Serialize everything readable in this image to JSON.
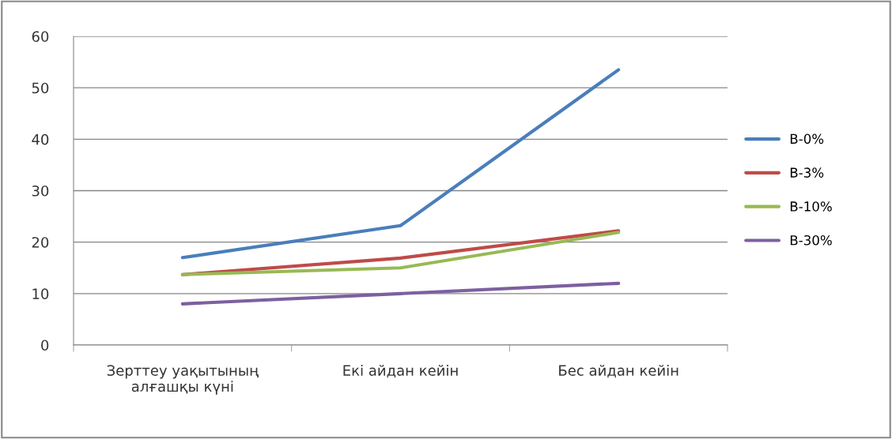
{
  "chart_data": {
    "type": "line",
    "categories": [
      "Зерттеу уақытының\nалғашқы күні",
      "Екі айдан кейін",
      "Бес айдан кейін"
    ],
    "series": [
      {
        "name": "B-0%",
        "color": "#4a7ebb",
        "values": [
          17,
          23.2,
          53.5
        ]
      },
      {
        "name": "B-3%",
        "color": "#be4b48",
        "values": [
          13.7,
          16.9,
          22.2
        ]
      },
      {
        "name": "B-10%",
        "color": "#98b954",
        "values": [
          13.7,
          15,
          21.9
        ]
      },
      {
        "name": "B-30%",
        "color": "#7d60a0",
        "values": [
          8,
          10,
          12
        ]
      }
    ],
    "ylim": [
      0,
      60
    ],
    "yticks": [
      0,
      10,
      20,
      30,
      40,
      50,
      60
    ],
    "grid": "y",
    "legend": "right",
    "marker": "none",
    "line_style": "solid"
  }
}
